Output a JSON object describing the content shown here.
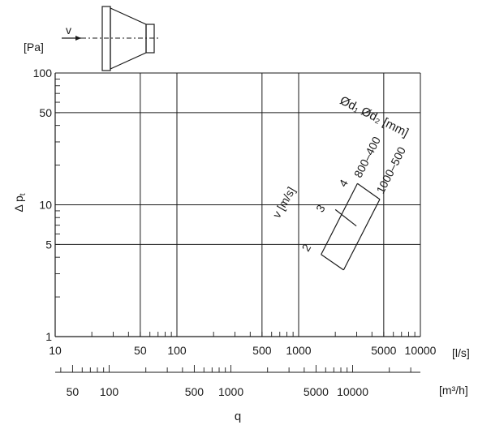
{
  "chart_data": {
    "type": "line",
    "title": "",
    "xlabel": "q",
    "ylabel": "Δ p",
    "ylabel_subscript": "t",
    "y_unit": "[Pa]",
    "x_unit": "[l/s]",
    "x2_unit": "[m³/h]",
    "x_scale": "log",
    "y_scale": "log",
    "xlim": [
      10,
      10000
    ],
    "ylim": [
      1,
      100
    ],
    "x2lim": [
      36,
      36000
    ],
    "grid": true,
    "x_tick_labels": [
      "10",
      "50",
      "100",
      "500",
      "1000",
      "5000",
      "10000"
    ],
    "y_tick_labels": [
      "1",
      "5",
      "10",
      "50",
      "100"
    ],
    "x2_tick_labels": [
      "50",
      "100",
      "500",
      "1000",
      "5000",
      "10000"
    ],
    "velocity_label": "v [m/s]",
    "velocity_ticks": [
      "2",
      "3",
      "4"
    ],
    "diameter_header": "Ød₁ Ød₂ [mm]",
    "series": [
      {
        "name": "800–400",
        "x": [
          1530,
          3040
        ],
        "y": [
          4.2,
          14.5
        ]
      },
      {
        "name": "1000–500",
        "x": [
          2340,
          4640
        ],
        "y": [
          3.2,
          11.0
        ]
      }
    ],
    "velocity_lines": [
      {
        "label": "3",
        "x": [
          2000,
          2980
        ],
        "y": [
          9.2,
          6.9
        ]
      }
    ],
    "reducer_icon": {
      "flow_label": "v"
    }
  }
}
